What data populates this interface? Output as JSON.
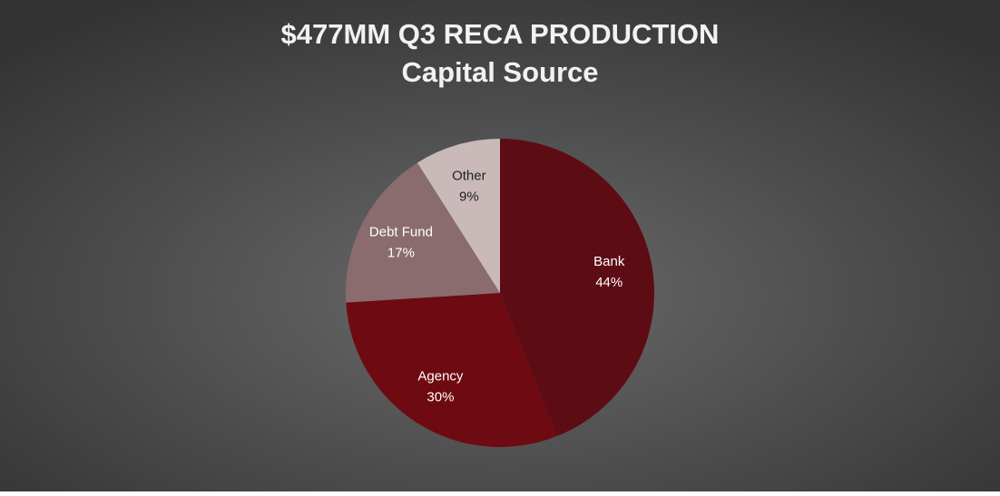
{
  "chart_data": {
    "type": "pie",
    "title": "$477MM Q3 RECA PRODUCTION",
    "subtitle": "Capital Source",
    "categories": [
      "Bank",
      "Agency",
      "Debt Fund",
      "Other"
    ],
    "values": [
      44,
      30,
      17,
      9
    ],
    "value_labels": [
      "44%",
      "30%",
      "17%",
      "9%"
    ],
    "colors": [
      "#5e0c14",
      "#6e0a12",
      "#8a6c6e",
      "#c9b9b9"
    ],
    "label_colors": [
      "#ffffff",
      "#ffffff",
      "#ffffff",
      "#222222"
    ]
  }
}
